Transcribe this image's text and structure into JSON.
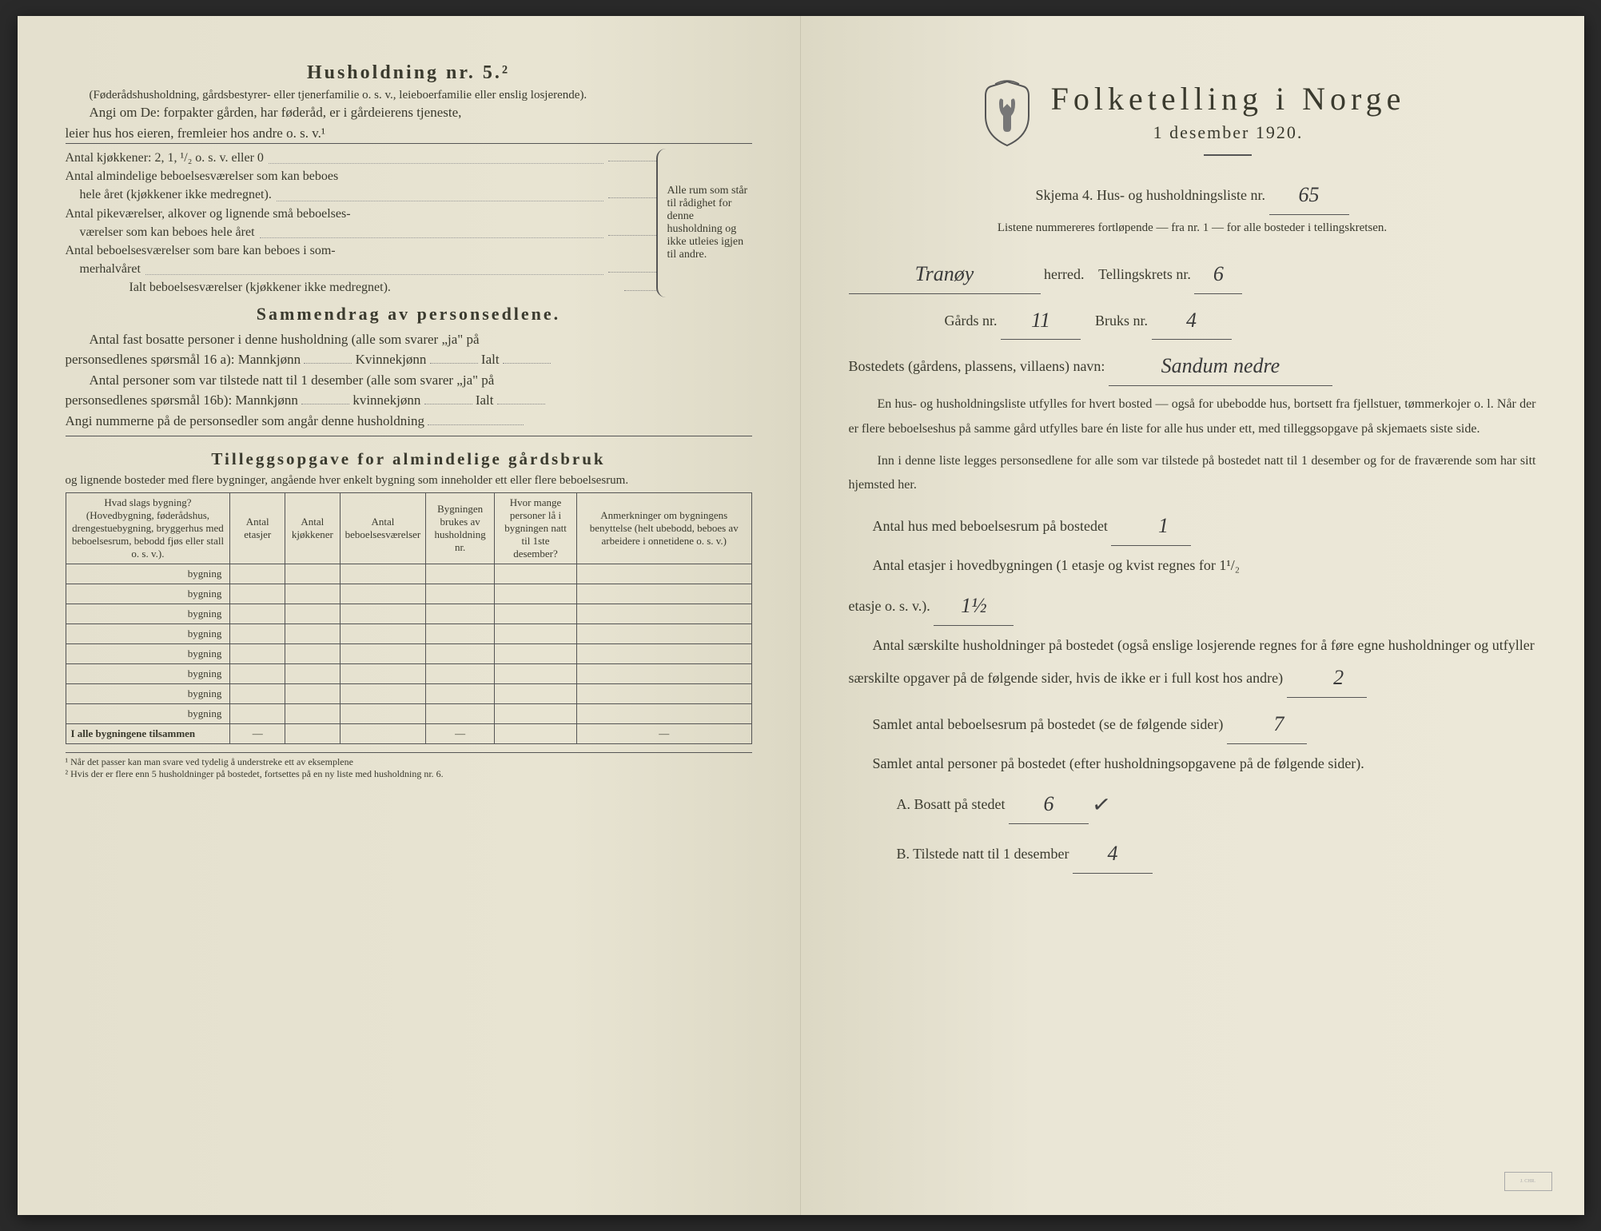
{
  "left": {
    "heading": "Husholdning nr. 5.²",
    "sub1": "(Føderådshusholdning, gårdsbestyrer- eller tjenerfamilie o. s. v., leieboerfamilie eller enslig losjerende).",
    "para1a": "Angi om De: forpakter gården, har føderåd, er i gårdeierens tjeneste,",
    "para1b": "leier hus hos eieren, fremleier hos andre o. s. v.¹",
    "kitchens": "Antal kjøkkener: 2, 1, ¹/₂ o. s. v. eller 0",
    "rooms1a": "Antal almindelige beboelsesværelser som kan beboes",
    "rooms1b": "hele året (kjøkkener ikke medregnet).",
    "rooms2a": "Antal pikeværelser, alkover og lignende små beboelses-",
    "rooms2b": "værelser som kan beboes hele året",
    "rooms3a": "Antal beboelsesværelser som bare kan beboes i som-",
    "rooms3b": "merhalvåret",
    "rooms_total": "Ialt beboelsesværelser (kjøkkener ikke medregnet).",
    "bracket_text": "Alle rum som står til rådighet for denne husholdning og ikke utleies igjen til andre.",
    "summary_heading": "Sammendrag av personsedlene.",
    "summary1a": "Antal fast bosatte personer i denne husholdning (alle som svarer „ja\" på",
    "summary1b": "personsedlenes spørsmål 16 a): Mannkjønn",
    "kvinne": "Kvinnekjønn",
    "ialt": "Ialt",
    "summary2a": "Antal personer som var tilstede natt til 1 desember (alle som svarer „ja\" på",
    "summary2b": "personsedlenes spørsmål 16b): Mannkjønn",
    "kvinne2": "kvinnekjønn",
    "summary3": "Angi nummerne på de personsedler som angår denne husholdning",
    "tillegg_heading": "Tilleggsopgave for almindelige gårdsbruk",
    "tillegg_sub": "og lignende bosteder med flere bygninger, angående hver enkelt bygning som inneholder ett eller flere beboelsesrum.",
    "table": {
      "headers": [
        "Hvad slags bygning?\n(Hovedbygning, føderådshus, drengestuebygning, bryggerhus med beboelsesrum, bebodd fjøs eller stall o. s. v.).",
        "Antal etasjer",
        "Antal kjøkkener",
        "Antal beboelsesværelser",
        "Bygningen brukes av husholdning nr.",
        "Hvor mange personer lå i bygningen natt til 1ste desember?",
        "Anmerkninger om bygningens benyttelse (helt ubebodd, beboes av arbeidere i onnetidene o. s. v.)"
      ],
      "row_label": "bygning",
      "row_count": 8,
      "total_label": "I alle bygningene tilsammen"
    },
    "footnote1": "¹ Når det passer kan man svare ved tydelig å understreke ett av eksemplene",
    "footnote2": "² Hvis der er flere enn 5 husholdninger på bostedet, fortsettes på en ny liste med husholdning nr. 6."
  },
  "right": {
    "title": "Folketelling i Norge",
    "date": "1 desember 1920.",
    "skjema": "Skjema 4.  Hus- og husholdningsliste nr.",
    "liste_nr": "65",
    "listene": "Listene nummereres fortløpende — fra nr. 1 — for alle bosteder i tellingskretsen.",
    "herred_value": "Tranøy",
    "herred_label": "herred.",
    "krets_label": "Tellingskrets nr.",
    "krets_value": "6",
    "gards_label": "Gårds nr.",
    "gards_value": "11",
    "bruks_label": "Bruks nr.",
    "bruks_value": "4",
    "bosted_label": "Bostedets (gårdens, plassens, villaens) navn:",
    "bosted_value": "Sandum nedre",
    "body1": "En hus- og husholdningsliste utfylles for hvert bosted — også for ubebodde hus, bortsett fra fjellstuer, tømmerkojer o. l. Når der er flere beboelseshus på samme gård utfylles bare én liste for alle hus under ett, med tilleggsopgave på skjemaets siste side.",
    "body2": "Inn i denne liste legges personsedlene for alle som var tilstede på bostedet natt til 1 desember og for de fraværende som har sitt hjemsted her.",
    "q1_label": "Antal hus med beboelsesrum på bostedet",
    "q1_value": "1",
    "q2_label_a": "Antal etasjer i hovedbygningen (1 etasje og kvist regnes for 1¹/₂",
    "q2_label_b": "etasje o. s. v.).",
    "q2_value": "1½",
    "q3": "Antal særskilte husholdninger på bostedet (også enslige losjerende regnes for å føre egne husholdninger og utfyller særskilte opgaver på de følgende sider, hvis de ikke er i full kost hos andre)",
    "q3_value": "2",
    "q4_label": "Samlet antal beboelsesrum på bostedet (se de følgende sider)",
    "q4_value": "7",
    "q5": "Samlet antal personer på bostedet (efter husholdningsopgavene på de følgende sider).",
    "qA_label": "A.  Bosatt på stedet",
    "qA_value": "6",
    "qB_label": "B.  Tilstede natt til 1 desember",
    "qB_value": "4"
  }
}
